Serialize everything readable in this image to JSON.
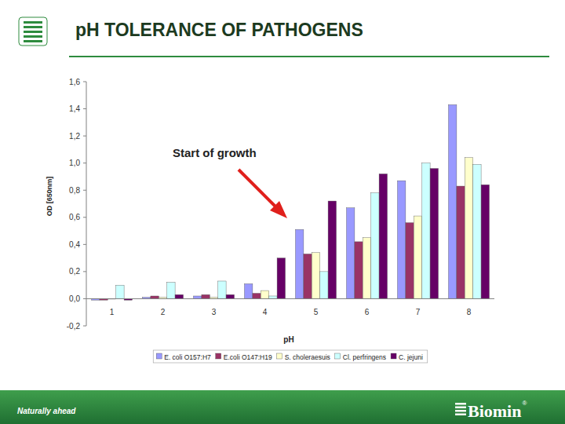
{
  "chart_data": {
    "type": "bar",
    "title": "pH TOLERANCE OF PATHOGENS",
    "x_label": "pH",
    "y_label": "OD [650nm]",
    "annotation": "Start of growth",
    "categories": [
      "1",
      "2",
      "3",
      "4",
      "5",
      "6",
      "7",
      "8"
    ],
    "series": [
      {
        "name": "E. coli O157:H7",
        "color": "#9999ff",
        "values": [
          -0.01,
          0.01,
          0.02,
          0.11,
          0.51,
          0.67,
          0.87,
          1.43
        ]
      },
      {
        "name": "E.coli O147:H19",
        "color": "#993366",
        "values": [
          -0.01,
          0.02,
          0.03,
          0.04,
          0.33,
          0.42,
          0.56,
          0.83
        ]
      },
      {
        "name": "S. choleraesuis",
        "color": "#ffffcc",
        "values": [
          0.0,
          0.01,
          0.01,
          0.06,
          0.34,
          0.45,
          0.61,
          1.04
        ]
      },
      {
        "name": "Cl. perfringens",
        "color": "#ccffff",
        "values": [
          0.1,
          0.12,
          0.13,
          0.02,
          0.2,
          0.78,
          1.0,
          0.99
        ]
      },
      {
        "name": "C. jejuni",
        "color": "#660066",
        "values": [
          -0.01,
          0.03,
          0.03,
          0.3,
          0.72,
          0.92,
          0.96,
          0.84
        ]
      }
    ],
    "ylim": [
      -0.2,
      1.6
    ],
    "yticks": [
      {
        "value": -0.2,
        "label": "-0,2"
      },
      {
        "value": 0,
        "label": "0,0"
      },
      {
        "value": 0.2,
        "label": "0,2"
      },
      {
        "value": 0.4,
        "label": "0,4"
      },
      {
        "value": 0.6,
        "label": "0,6"
      },
      {
        "value": 0.8,
        "label": "0,8"
      },
      {
        "value": 1.0,
        "label": "1,0"
      },
      {
        "value": 1.2,
        "label": "1,2"
      },
      {
        "value": 1.4,
        "label": "1,4"
      },
      {
        "value": 1.6,
        "label": "1,6"
      }
    ],
    "grid": false,
    "legend": "bottom"
  },
  "footer": {
    "slogan": "Naturally ahead",
    "brand": "Biomin",
    "brand_mark": "®"
  }
}
